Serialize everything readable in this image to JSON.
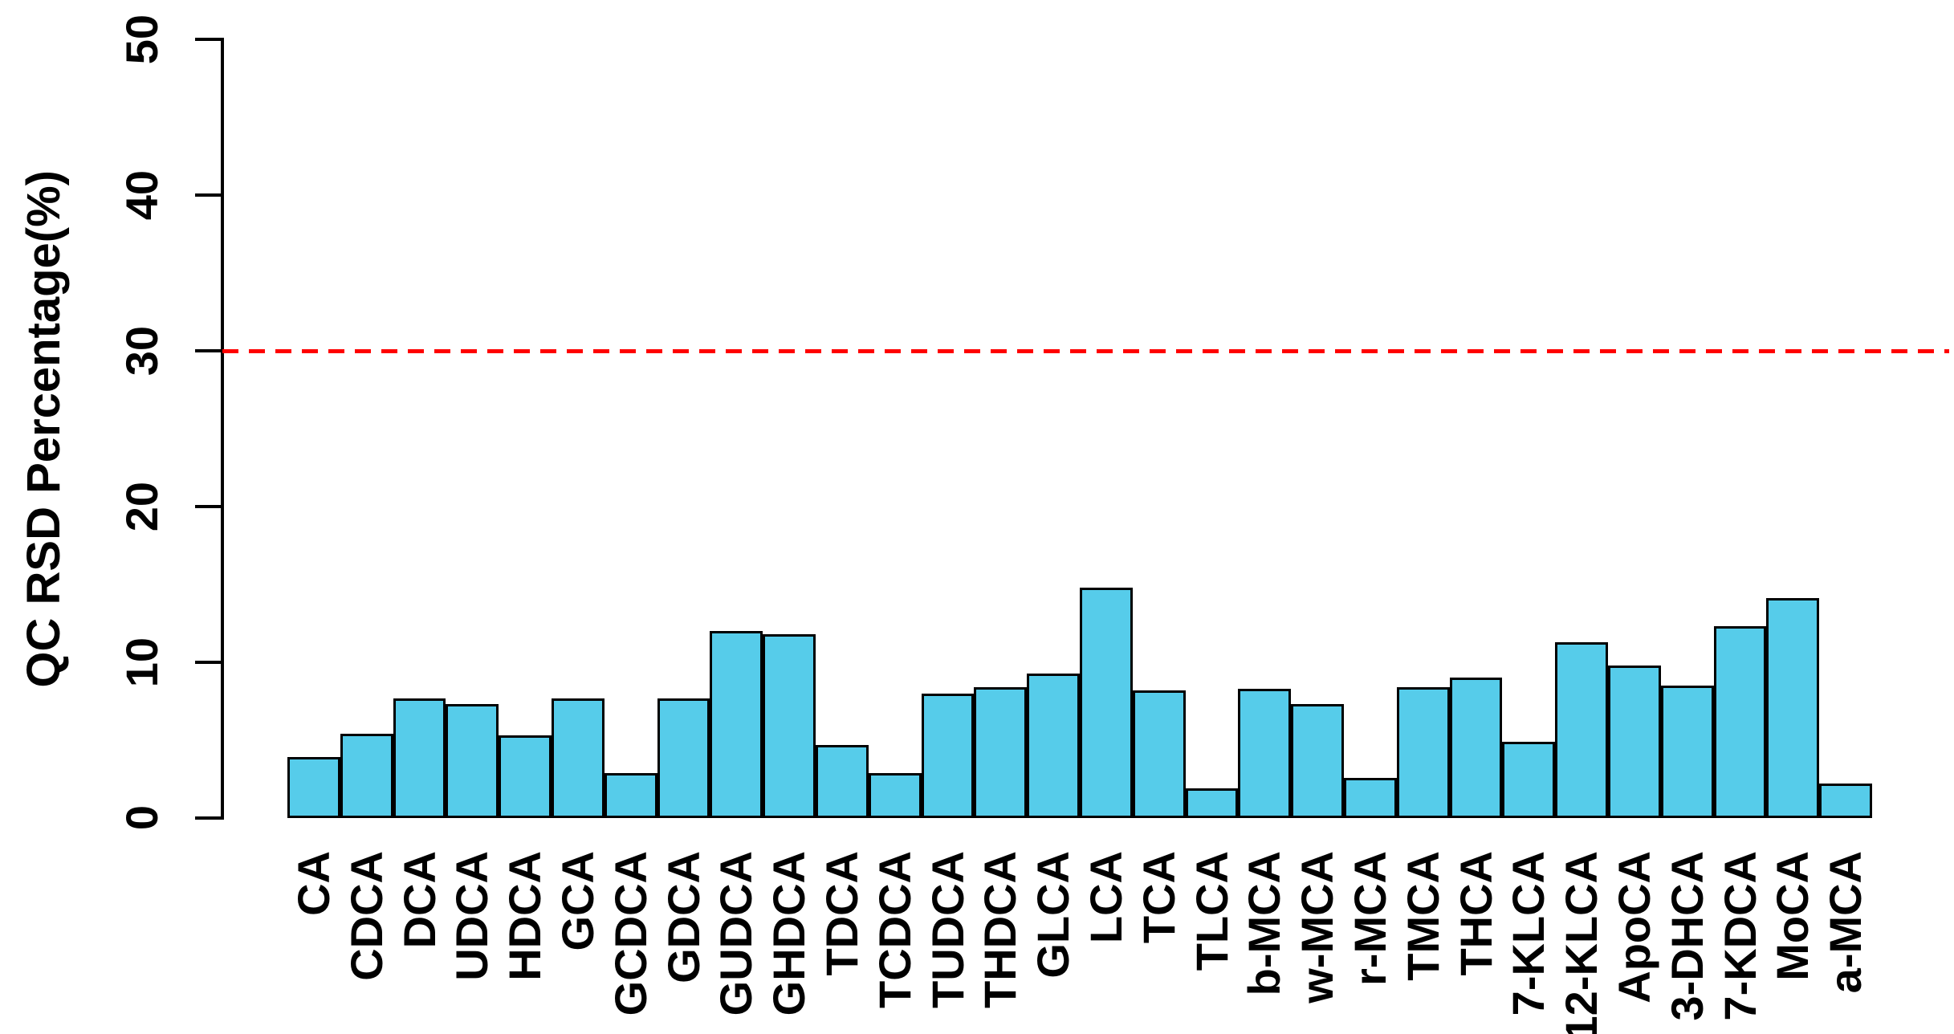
{
  "chart_data": {
    "type": "bar",
    "title": "",
    "xlabel": "",
    "ylabel": "QC RSD Percentage(%)",
    "ylim": [
      0,
      50
    ],
    "yticks": [
      0,
      10,
      20,
      30,
      40,
      50
    ],
    "grid": false,
    "legend": "none",
    "threshold_line": {
      "value": 30,
      "color": "#ff0000",
      "style": "dashed"
    },
    "bar_fill_color": "#56ccea",
    "bar_border_color": "#000000",
    "categories": [
      "CA",
      "CDCA",
      "DCA",
      "UDCA",
      "HDCA",
      "GCA",
      "GCDCA",
      "GDCA",
      "GUDCA",
      "GHDCA",
      "TDCA",
      "TCDCA",
      "TUDCA",
      "THDCA",
      "GLCA",
      "LCA",
      "TCA",
      "TLCA",
      "b-MCA",
      "w-MCA",
      "r-MCA",
      "TMCA",
      "THCA",
      "7-KLCA",
      "12-KLCA",
      "ApoCA",
      "3-DHCA",
      "7-KDCA",
      "MoCA",
      "a-MCA"
    ],
    "values": [
      3.9,
      5.4,
      7.7,
      7.3,
      5.3,
      7.7,
      2.9,
      7.7,
      12.0,
      11.8,
      4.7,
      2.9,
      8.0,
      8.4,
      9.3,
      14.8,
      8.2,
      1.9,
      8.3,
      7.3,
      2.6,
      8.4,
      9.0,
      4.9,
      11.3,
      9.8,
      8.5,
      12.3,
      14.1,
      2.2
    ]
  }
}
